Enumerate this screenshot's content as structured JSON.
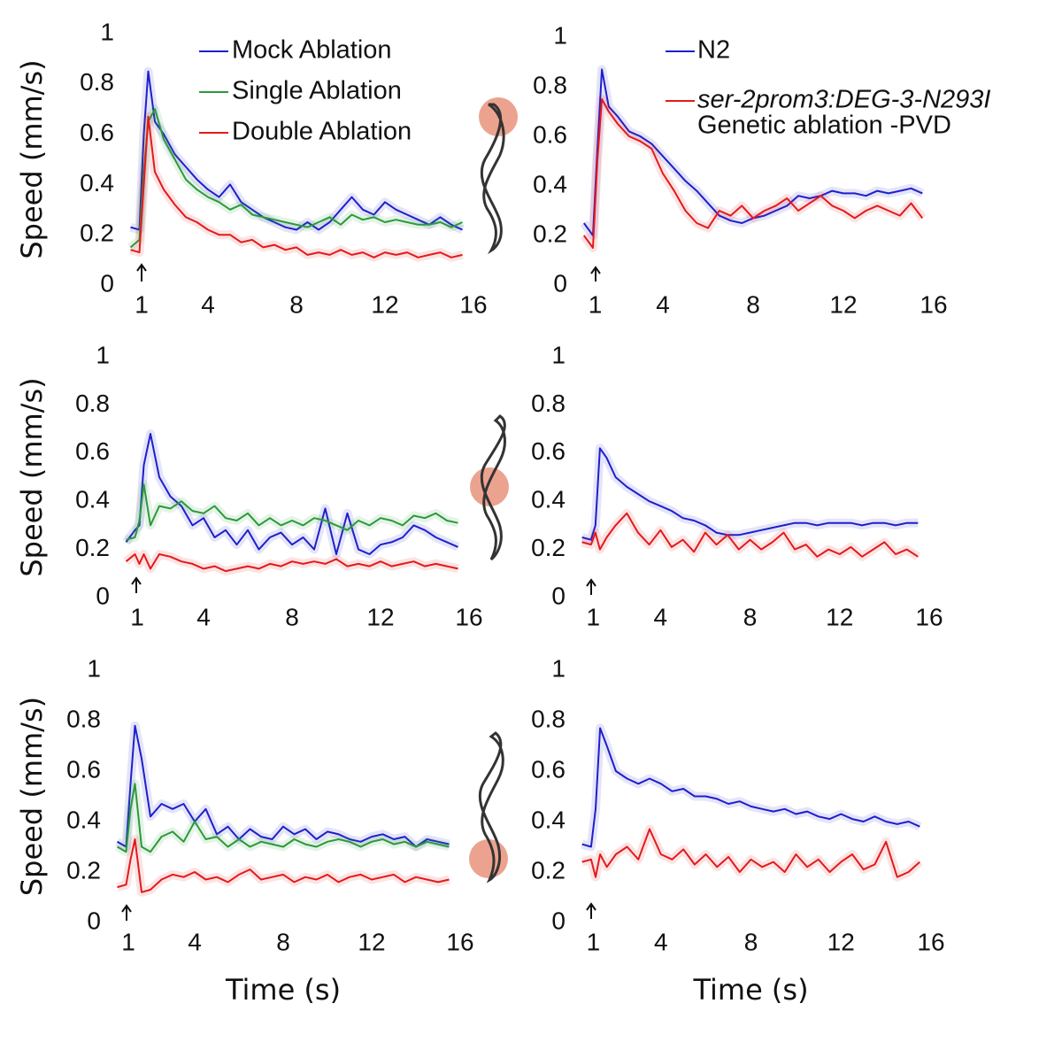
{
  "chart_data": [
    {
      "type": "line",
      "ylabel": "Speed (mm/s)",
      "legend": true,
      "x": [
        0.5,
        0.9,
        1.1,
        1.3,
        1.6,
        2,
        2.5,
        3,
        3.5,
        4,
        4.5,
        5,
        5.5,
        6,
        6.5,
        7,
        7.5,
        8,
        8.5,
        9,
        9.5,
        10,
        10.5,
        11,
        11.5,
        12,
        12.5,
        13,
        13.5,
        14,
        14.5,
        15,
        15.5
      ],
      "xlim": [
        0,
        16
      ],
      "xticks": [
        1,
        4,
        8,
        12,
        16
      ],
      "ylim": [
        0,
        1
      ],
      "yticks": [
        0,
        0.2,
        0.4,
        0.6,
        0.8,
        1
      ],
      "series": [
        {
          "name": "Mock Ablation",
          "color": "#1f1fcc",
          "values": [
            0.23,
            0.22,
            0.6,
            0.85,
            0.65,
            0.6,
            0.52,
            0.47,
            0.42,
            0.38,
            0.35,
            0.4,
            0.33,
            0.3,
            0.27,
            0.25,
            0.23,
            0.22,
            0.25,
            0.22,
            0.25,
            0.3,
            0.35,
            0.3,
            0.28,
            0.33,
            0.3,
            0.28,
            0.26,
            0.24,
            0.27,
            0.24,
            0.22
          ]
        },
        {
          "name": "Single Ablation",
          "color": "#2a9a3a",
          "values": [
            0.15,
            0.18,
            0.45,
            0.65,
            0.7,
            0.58,
            0.5,
            0.42,
            0.38,
            0.35,
            0.33,
            0.3,
            0.32,
            0.28,
            0.27,
            0.26,
            0.25,
            0.24,
            0.23,
            0.25,
            0.27,
            0.24,
            0.28,
            0.26,
            0.27,
            0.25,
            0.26,
            0.25,
            0.24,
            0.24,
            0.25,
            0.23,
            0.25
          ]
        },
        {
          "name": "Double Ablation",
          "color": "#e31a1c",
          "values": [
            0.14,
            0.13,
            0.4,
            0.67,
            0.45,
            0.38,
            0.32,
            0.27,
            0.25,
            0.22,
            0.2,
            0.2,
            0.17,
            0.18,
            0.15,
            0.16,
            0.14,
            0.15,
            0.12,
            0.13,
            0.12,
            0.14,
            0.12,
            0.13,
            0.11,
            0.13,
            0.12,
            0.13,
            0.11,
            0.12,
            0.13,
            0.11,
            0.12
          ]
        }
      ]
    },
    {
      "type": "line",
      "legend": true,
      "annotation": "Genetic ablation -PVD",
      "x": [
        0.5,
        0.9,
        1.1,
        1.3,
        1.6,
        2,
        2.5,
        3,
        3.5,
        4,
        4.5,
        5,
        5.5,
        6,
        6.5,
        7,
        7.5,
        8,
        8.5,
        9,
        9.5,
        10,
        10.5,
        11,
        11.5,
        12,
        12.5,
        13,
        13.5,
        14,
        14.5,
        15,
        15.5
      ],
      "xlim": [
        0,
        16
      ],
      "xticks": [
        1,
        4,
        8,
        12,
        16
      ],
      "ylim": [
        0,
        1
      ],
      "yticks": [
        0,
        0.2,
        0.4,
        0.6,
        0.8,
        1
      ],
      "series": [
        {
          "name": "N2",
          "color": "#1f1fcc",
          "values": [
            0.25,
            0.2,
            0.55,
            0.87,
            0.72,
            0.68,
            0.62,
            0.6,
            0.57,
            0.52,
            0.47,
            0.42,
            0.38,
            0.33,
            0.28,
            0.26,
            0.25,
            0.27,
            0.28,
            0.3,
            0.32,
            0.36,
            0.35,
            0.36,
            0.38,
            0.37,
            0.37,
            0.36,
            0.38,
            0.37,
            0.38,
            0.39,
            0.37
          ]
        },
        {
          "name": "ser-2prom3:DEG-3-N293I",
          "color": "#e31a1c",
          "values": [
            0.2,
            0.15,
            0.5,
            0.75,
            0.7,
            0.65,
            0.6,
            0.58,
            0.55,
            0.45,
            0.38,
            0.3,
            0.25,
            0.23,
            0.3,
            0.28,
            0.32,
            0.27,
            0.3,
            0.32,
            0.35,
            0.3,
            0.33,
            0.36,
            0.32,
            0.3,
            0.27,
            0.3,
            0.32,
            0.3,
            0.28,
            0.33,
            0.27
          ]
        }
      ]
    },
    {
      "type": "line",
      "ylabel": "Speed (mm/s)",
      "x": [
        0.5,
        0.9,
        1.1,
        1.3,
        1.6,
        2,
        2.5,
        3,
        3.5,
        4,
        4.5,
        5,
        5.5,
        6,
        6.5,
        7,
        7.5,
        8,
        8.5,
        9,
        9.5,
        10,
        10.5,
        11,
        11.5,
        12,
        12.5,
        13,
        13.5,
        14,
        14.5,
        15,
        15.5
      ],
      "xlim": [
        0,
        16
      ],
      "xticks": [
        1,
        4,
        8,
        12,
        16
      ],
      "ylim": [
        0,
        1
      ],
      "yticks": [
        0,
        0.2,
        0.4,
        0.6,
        0.8,
        1
      ],
      "series": [
        {
          "color": "#1f1fcc",
          "values": [
            0.23,
            0.28,
            0.3,
            0.55,
            0.68,
            0.5,
            0.42,
            0.38,
            0.3,
            0.33,
            0.25,
            0.28,
            0.22,
            0.28,
            0.2,
            0.25,
            0.27,
            0.22,
            0.25,
            0.2,
            0.37,
            0.18,
            0.35,
            0.2,
            0.18,
            0.22,
            0.23,
            0.25,
            0.3,
            0.28,
            0.25,
            0.23,
            0.21
          ]
        },
        {
          "color": "#2a9a3a",
          "values": [
            0.24,
            0.25,
            0.32,
            0.47,
            0.3,
            0.38,
            0.37,
            0.4,
            0.36,
            0.35,
            0.38,
            0.33,
            0.32,
            0.35,
            0.3,
            0.33,
            0.3,
            0.32,
            0.3,
            0.33,
            0.32,
            0.3,
            0.28,
            0.32,
            0.3,
            0.33,
            0.32,
            0.3,
            0.34,
            0.33,
            0.35,
            0.32,
            0.31
          ]
        },
        {
          "color": "#e31a1c",
          "values": [
            0.15,
            0.18,
            0.14,
            0.18,
            0.12,
            0.18,
            0.17,
            0.15,
            0.14,
            0.12,
            0.13,
            0.11,
            0.12,
            0.13,
            0.12,
            0.14,
            0.13,
            0.15,
            0.14,
            0.15,
            0.14,
            0.16,
            0.13,
            0.14,
            0.13,
            0.15,
            0.13,
            0.14,
            0.15,
            0.13,
            0.14,
            0.13,
            0.12
          ]
        }
      ]
    },
    {
      "type": "line",
      "x": [
        0.5,
        0.9,
        1.1,
        1.3,
        1.6,
        2,
        2.5,
        3,
        3.5,
        4,
        4.5,
        5,
        5.5,
        6,
        6.5,
        7,
        7.5,
        8,
        8.5,
        9,
        9.5,
        10,
        10.5,
        11,
        11.5,
        12,
        12.5,
        13,
        13.5,
        14,
        14.5,
        15,
        15.5
      ],
      "xlim": [
        0,
        16
      ],
      "xticks": [
        1,
        4,
        8,
        12,
        16
      ],
      "ylim": [
        0,
        1
      ],
      "yticks": [
        0,
        0.2,
        0.4,
        0.6,
        0.8,
        1
      ],
      "series": [
        {
          "color": "#1f1fcc",
          "values": [
            0.25,
            0.24,
            0.3,
            0.62,
            0.58,
            0.5,
            0.46,
            0.43,
            0.4,
            0.38,
            0.36,
            0.33,
            0.32,
            0.3,
            0.27,
            0.26,
            0.26,
            0.27,
            0.28,
            0.29,
            0.3,
            0.31,
            0.31,
            0.3,
            0.31,
            0.31,
            0.31,
            0.3,
            0.31,
            0.31,
            0.3,
            0.31,
            0.31
          ]
        },
        {
          "color": "#e31a1c",
          "values": [
            0.23,
            0.22,
            0.27,
            0.2,
            0.25,
            0.3,
            0.35,
            0.27,
            0.22,
            0.28,
            0.21,
            0.24,
            0.19,
            0.27,
            0.22,
            0.26,
            0.2,
            0.24,
            0.2,
            0.23,
            0.27,
            0.2,
            0.22,
            0.17,
            0.2,
            0.18,
            0.21,
            0.17,
            0.2,
            0.23,
            0.18,
            0.2,
            0.17
          ]
        }
      ]
    },
    {
      "type": "line",
      "ylabel": "Speed (mm/s)",
      "xlabel": "Time (s)",
      "x": [
        0.5,
        0.9,
        1.1,
        1.3,
        1.6,
        2,
        2.5,
        3,
        3.5,
        4,
        4.5,
        5,
        5.5,
        6,
        6.5,
        7,
        7.5,
        8,
        8.5,
        9,
        9.5,
        10,
        10.5,
        11,
        11.5,
        12,
        12.5,
        13,
        13.5,
        14,
        14.5,
        15,
        15.5
      ],
      "xlim": [
        0,
        16
      ],
      "xticks": [
        1,
        4,
        8,
        12,
        16
      ],
      "ylim": [
        0,
        1
      ],
      "yticks": [
        0,
        0.2,
        0.4,
        0.6,
        0.8,
        1
      ],
      "series": [
        {
          "color": "#1f1fcc",
          "values": [
            0.32,
            0.3,
            0.55,
            0.78,
            0.65,
            0.42,
            0.47,
            0.45,
            0.47,
            0.4,
            0.45,
            0.35,
            0.38,
            0.33,
            0.37,
            0.34,
            0.33,
            0.38,
            0.35,
            0.37,
            0.33,
            0.36,
            0.35,
            0.33,
            0.32,
            0.34,
            0.35,
            0.33,
            0.34,
            0.3,
            0.33,
            0.32,
            0.31
          ]
        },
        {
          "color": "#2a9a3a",
          "values": [
            0.3,
            0.28,
            0.45,
            0.55,
            0.3,
            0.28,
            0.34,
            0.36,
            0.32,
            0.4,
            0.33,
            0.34,
            0.3,
            0.33,
            0.3,
            0.32,
            0.31,
            0.3,
            0.33,
            0.31,
            0.3,
            0.32,
            0.33,
            0.32,
            0.3,
            0.32,
            0.33,
            0.31,
            0.32,
            0.3,
            0.32,
            0.31,
            0.3
          ]
        },
        {
          "color": "#e31a1c",
          "values": [
            0.14,
            0.15,
            0.25,
            0.33,
            0.12,
            0.13,
            0.17,
            0.19,
            0.18,
            0.2,
            0.17,
            0.18,
            0.16,
            0.19,
            0.21,
            0.17,
            0.18,
            0.19,
            0.16,
            0.18,
            0.17,
            0.19,
            0.16,
            0.18,
            0.19,
            0.17,
            0.18,
            0.19,
            0.16,
            0.18,
            0.17,
            0.16,
            0.17
          ]
        }
      ]
    },
    {
      "type": "line",
      "xlabel": "Time (s)",
      "x": [
        0.5,
        0.9,
        1.1,
        1.3,
        1.6,
        2,
        2.5,
        3,
        3.5,
        4,
        4.5,
        5,
        5.5,
        6,
        6.5,
        7,
        7.5,
        8,
        8.5,
        9,
        9.5,
        10,
        10.5,
        11,
        11.5,
        12,
        12.5,
        13,
        13.5,
        14,
        14.5,
        15,
        15.5
      ],
      "xlim": [
        0,
        16
      ],
      "xticks": [
        1,
        4,
        8,
        12,
        16
      ],
      "ylim": [
        0,
        1
      ],
      "yticks": [
        0,
        0.2,
        0.4,
        0.6,
        0.8,
        1
      ],
      "series": [
        {
          "color": "#1f1fcc",
          "values": [
            0.31,
            0.3,
            0.45,
            0.77,
            0.7,
            0.6,
            0.57,
            0.55,
            0.57,
            0.55,
            0.52,
            0.53,
            0.5,
            0.5,
            0.49,
            0.47,
            0.48,
            0.46,
            0.45,
            0.44,
            0.45,
            0.43,
            0.44,
            0.42,
            0.41,
            0.43,
            0.41,
            0.4,
            0.42,
            0.4,
            0.39,
            0.4,
            0.38
          ]
        },
        {
          "color": "#e31a1c",
          "values": [
            0.24,
            0.25,
            0.18,
            0.27,
            0.22,
            0.27,
            0.3,
            0.25,
            0.37,
            0.27,
            0.25,
            0.29,
            0.23,
            0.27,
            0.22,
            0.26,
            0.2,
            0.25,
            0.22,
            0.24,
            0.2,
            0.27,
            0.22,
            0.25,
            0.2,
            0.24,
            0.27,
            0.21,
            0.23,
            0.32,
            0.18,
            0.2,
            0.24
          ]
        }
      ]
    }
  ]
}
